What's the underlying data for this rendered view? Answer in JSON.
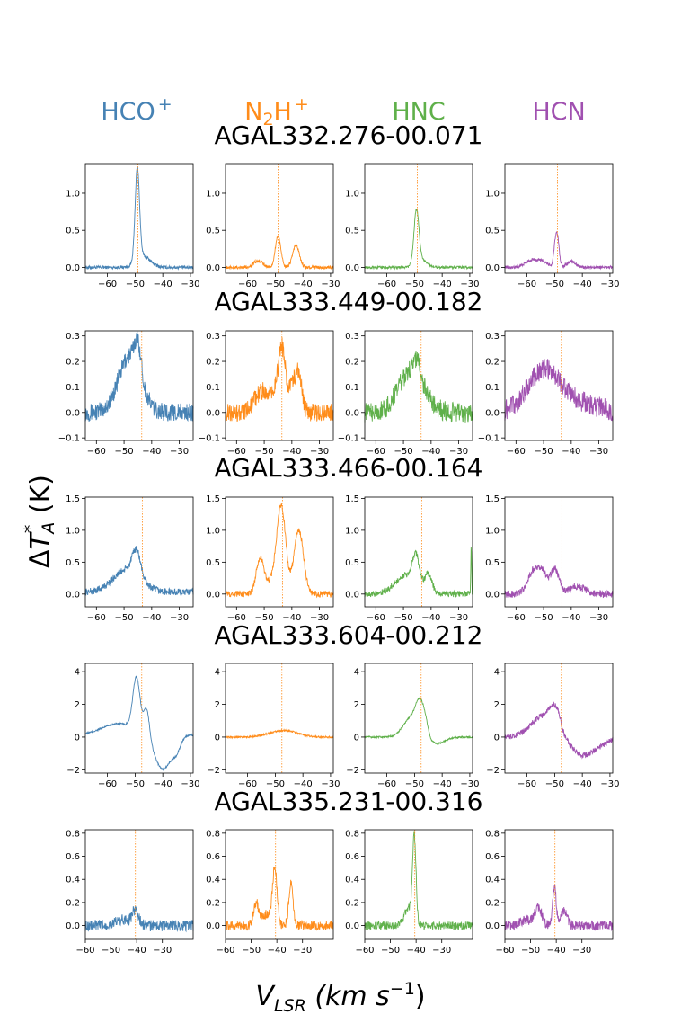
{
  "chart_data": {
    "type": "line",
    "xlabel": "V_LSR (km s^-1)",
    "ylabel": "ΔT*_A (K)",
    "molecules": [
      {
        "name": "HCO",
        "sup": "+",
        "color": "#4682b4"
      },
      {
        "name": "N2H",
        "sup": "+",
        "color": "#ff8c1a"
      },
      {
        "name": "HNC",
        "sup": "",
        "color": "#5fb04a"
      },
      {
        "name": "HCN",
        "sup": "",
        "color": "#a050b0"
      }
    ],
    "rows": [
      {
        "source": "AGAL332.276-00.071",
        "xlim": [
          -68,
          -29
        ],
        "ylim": [
          -0.08,
          1.4
        ],
        "xticks": [
          -60,
          -50,
          -40,
          -30
        ],
        "yticks": [
          0.0,
          0.5,
          1.0
        ],
        "vlsr": -49,
        "spectra": [
          {
            "baseline": 0.0,
            "noise": 0.015,
            "comps": [
              {
                "c": -49.2,
                "a": 1.25,
                "w": 0.8
              },
              {
                "c": -47,
                "a": 0.15,
                "w": 2.5
              }
            ]
          },
          {
            "baseline": 0.0,
            "noise": 0.015,
            "comps": [
              {
                "c": -57,
                "a": 0.07,
                "w": 1.2
              },
              {
                "c": -55,
                "a": 0.06,
                "w": 1.0
              },
              {
                "c": -49,
                "a": 0.42,
                "w": 1.0
              },
              {
                "c": -42.5,
                "a": 0.3,
                "w": 1.2
              }
            ]
          },
          {
            "baseline": 0.0,
            "noise": 0.012,
            "comps": [
              {
                "c": -49.3,
                "a": 0.72,
                "w": 0.9
              },
              {
                "c": -47.5,
                "a": 0.1,
                "w": 2.0
              }
            ]
          },
          {
            "baseline": 0.0,
            "noise": 0.015,
            "comps": [
              {
                "c": -58,
                "a": 0.1,
                "w": 2.5
              },
              {
                "c": -54,
                "a": 0.06,
                "w": 1.5
              },
              {
                "c": -49.3,
                "a": 0.48,
                "w": 0.8
              },
              {
                "c": -44,
                "a": 0.08,
                "w": 1.5
              }
            ]
          }
        ]
      },
      {
        "source": "AGAL333.449-00.182",
        "xlim": [
          -64,
          -25
        ],
        "ylim": [
          -0.11,
          0.32
        ],
        "xticks": [
          -60,
          -50,
          -40,
          -30
        ],
        "yticks": [
          -0.1,
          0.0,
          0.1,
          0.2,
          0.3
        ],
        "vlsr": -43.6,
        "spectra": [
          {
            "baseline": 0.0,
            "noise": 0.025,
            "comps": [
              {
                "c": -48,
                "a": 0.22,
                "w": 4.0
              },
              {
                "c": -45,
                "a": 0.12,
                "w": 1.2
              }
            ]
          },
          {
            "baseline": 0.0,
            "noise": 0.025,
            "comps": [
              {
                "c": -51,
                "a": 0.08,
                "w": 2.5
              },
              {
                "c": -43.6,
                "a": 0.22,
                "w": 1.2
              },
              {
                "c": -40,
                "a": 0.1,
                "w": 1.5
              },
              {
                "c": -37.5,
                "a": 0.13,
                "w": 1.2
              },
              {
                "c": -46,
                "a": 0.07,
                "w": 2.0
              }
            ]
          },
          {
            "baseline": 0.0,
            "noise": 0.028,
            "comps": [
              {
                "c": -47,
                "a": 0.17,
                "w": 4.5
              },
              {
                "c": -45,
                "a": 0.06,
                "w": 1.0
              }
            ]
          },
          {
            "baseline": 0.0,
            "noise": 0.03,
            "comps": [
              {
                "c": -49.5,
                "a": 0.17,
                "w": 6.0
              },
              {
                "c": -35,
                "a": 0.03,
                "w": 6.0
              }
            ]
          }
        ]
      },
      {
        "source": "AGAL333.466-00.164",
        "xlim": [
          -64,
          -25
        ],
        "ylim": [
          -0.2,
          1.52
        ],
        "xticks": [
          -60,
          -50,
          -40,
          -30
        ],
        "yticks": [
          0.0,
          0.5,
          1.0,
          1.5
        ],
        "vlsr": -43.4,
        "spectra": [
          {
            "baseline": 0.03,
            "noise": 0.04,
            "comps": [
              {
                "c": -49,
                "a": 0.35,
                "w": 5.0
              },
              {
                "c": -45.5,
                "a": 0.4,
                "w": 1.5
              }
            ]
          },
          {
            "baseline": 0.0,
            "noise": 0.035,
            "comps": [
              {
                "c": -51.5,
                "a": 0.55,
                "w": 1.4
              },
              {
                "c": -43.8,
                "a": 1.35,
                "w": 1.6
              },
              {
                "c": -37.5,
                "a": 1.0,
                "w": 1.7
              },
              {
                "c": -47,
                "a": 0.2,
                "w": 2.0
              }
            ]
          },
          {
            "baseline": 0.0,
            "noise": 0.035,
            "comps": [
              {
                "c": -49,
                "a": 0.3,
                "w": 4.0
              },
              {
                "c": -45.5,
                "a": 0.45,
                "w": 1.2
              },
              {
                "c": -41,
                "a": 0.28,
                "w": 1.3
              },
              {
                "c": -25.5,
                "a": 0.75,
                "w": 0.15
              }
            ]
          },
          {
            "baseline": 0.0,
            "noise": 0.04,
            "comps": [
              {
                "c": -53,
                "a": 0.4,
                "w": 2.5
              },
              {
                "c": -46,
                "a": 0.38,
                "w": 1.5
              },
              {
                "c": -38,
                "a": 0.12,
                "w": 3.0
              },
              {
                "c": -50,
                "a": 0.15,
                "w": 1.5
              }
            ]
          }
        ]
      },
      {
        "source": "AGAL333.604-00.212",
        "xlim": [
          -68,
          -29
        ],
        "ylim": [
          -2.2,
          4.5
        ],
        "xticks": [
          -60,
          -50,
          -40,
          -30
        ],
        "yticks": [
          -2,
          0,
          2,
          4
        ],
        "vlsr": -47.6,
        "spectra": [
          {
            "baseline": 0.12,
            "noise": 0.04,
            "comps": [
              {
                "c": -56,
                "a": 0.7,
                "w": 6.0
              },
              {
                "c": -49.5,
                "a": 3.2,
                "w": 1.3
              },
              {
                "c": -45.8,
                "a": 1.7,
                "w": 1.0
              },
              {
                "c": -40,
                "a": -2.1,
                "w": 3.0
              },
              {
                "c": -35,
                "a": -0.7,
                "w": 1.5
              }
            ]
          },
          {
            "baseline": 0.0,
            "noise": 0.04,
            "comps": [
              {
                "c": -47,
                "a": 0.4,
                "w": 5.0
              }
            ]
          },
          {
            "baseline": 0.0,
            "noise": 0.04,
            "comps": [
              {
                "c": -51,
                "a": 1.2,
                "w": 3.0
              },
              {
                "c": -48,
                "a": 1.6,
                "w": 1.5
              },
              {
                "c": -46,
                "a": 0.6,
                "w": 1.0
              },
              {
                "c": -42,
                "a": -0.4,
                "w": 3.0
              }
            ]
          },
          {
            "baseline": 0.0,
            "noise": 0.12,
            "comps": [
              {
                "c": -54,
                "a": 1.3,
                "w": 4.5
              },
              {
                "c": -50.5,
                "a": 1.0,
                "w": 1.5
              },
              {
                "c": -48.5,
                "a": 0.6,
                "w": 1.0
              },
              {
                "c": -40,
                "a": -1.1,
                "w": 4.0
              },
              {
                "c": -33,
                "a": -0.3,
                "w": 3.0
              }
            ]
          }
        ]
      },
      {
        "source": "AGAL335.231-00.316",
        "xlim": [
          -60,
          -18
        ],
        "ylim": [
          -0.12,
          0.83
        ],
        "xticks": [
          -60,
          -50,
          -40,
          -30
        ],
        "yticks": [
          0.0,
          0.2,
          0.4,
          0.6,
          0.8
        ],
        "vlsr": -40.5,
        "spectra": [
          {
            "baseline": 0.0,
            "noise": 0.035,
            "comps": [
              {
                "c": -40.5,
                "a": 0.12,
                "w": 1.2
              },
              {
                "c": -45,
                "a": 0.05,
                "w": 3.0
              }
            ]
          },
          {
            "baseline": 0.0,
            "noise": 0.03,
            "comps": [
              {
                "c": -48,
                "a": 0.2,
                "w": 1.0
              },
              {
                "c": -40.8,
                "a": 0.5,
                "w": 0.9
              },
              {
                "c": -34.5,
                "a": 0.38,
                "w": 0.8
              },
              {
                "c": -44,
                "a": 0.1,
                "w": 1.5
              }
            ]
          },
          {
            "baseline": 0.0,
            "noise": 0.025,
            "comps": [
              {
                "c": -40.7,
                "a": 0.74,
                "w": 0.7
              },
              {
                "c": -43,
                "a": 0.15,
                "w": 1.5
              }
            ]
          },
          {
            "baseline": 0.0,
            "noise": 0.03,
            "comps": [
              {
                "c": -47,
                "a": 0.15,
                "w": 1.5
              },
              {
                "c": -40.7,
                "a": 0.33,
                "w": 0.7
              },
              {
                "c": -37,
                "a": 0.12,
                "w": 1.2
              },
              {
                "c": -52,
                "a": 0.05,
                "w": 2.0
              }
            ]
          }
        ]
      }
    ]
  }
}
